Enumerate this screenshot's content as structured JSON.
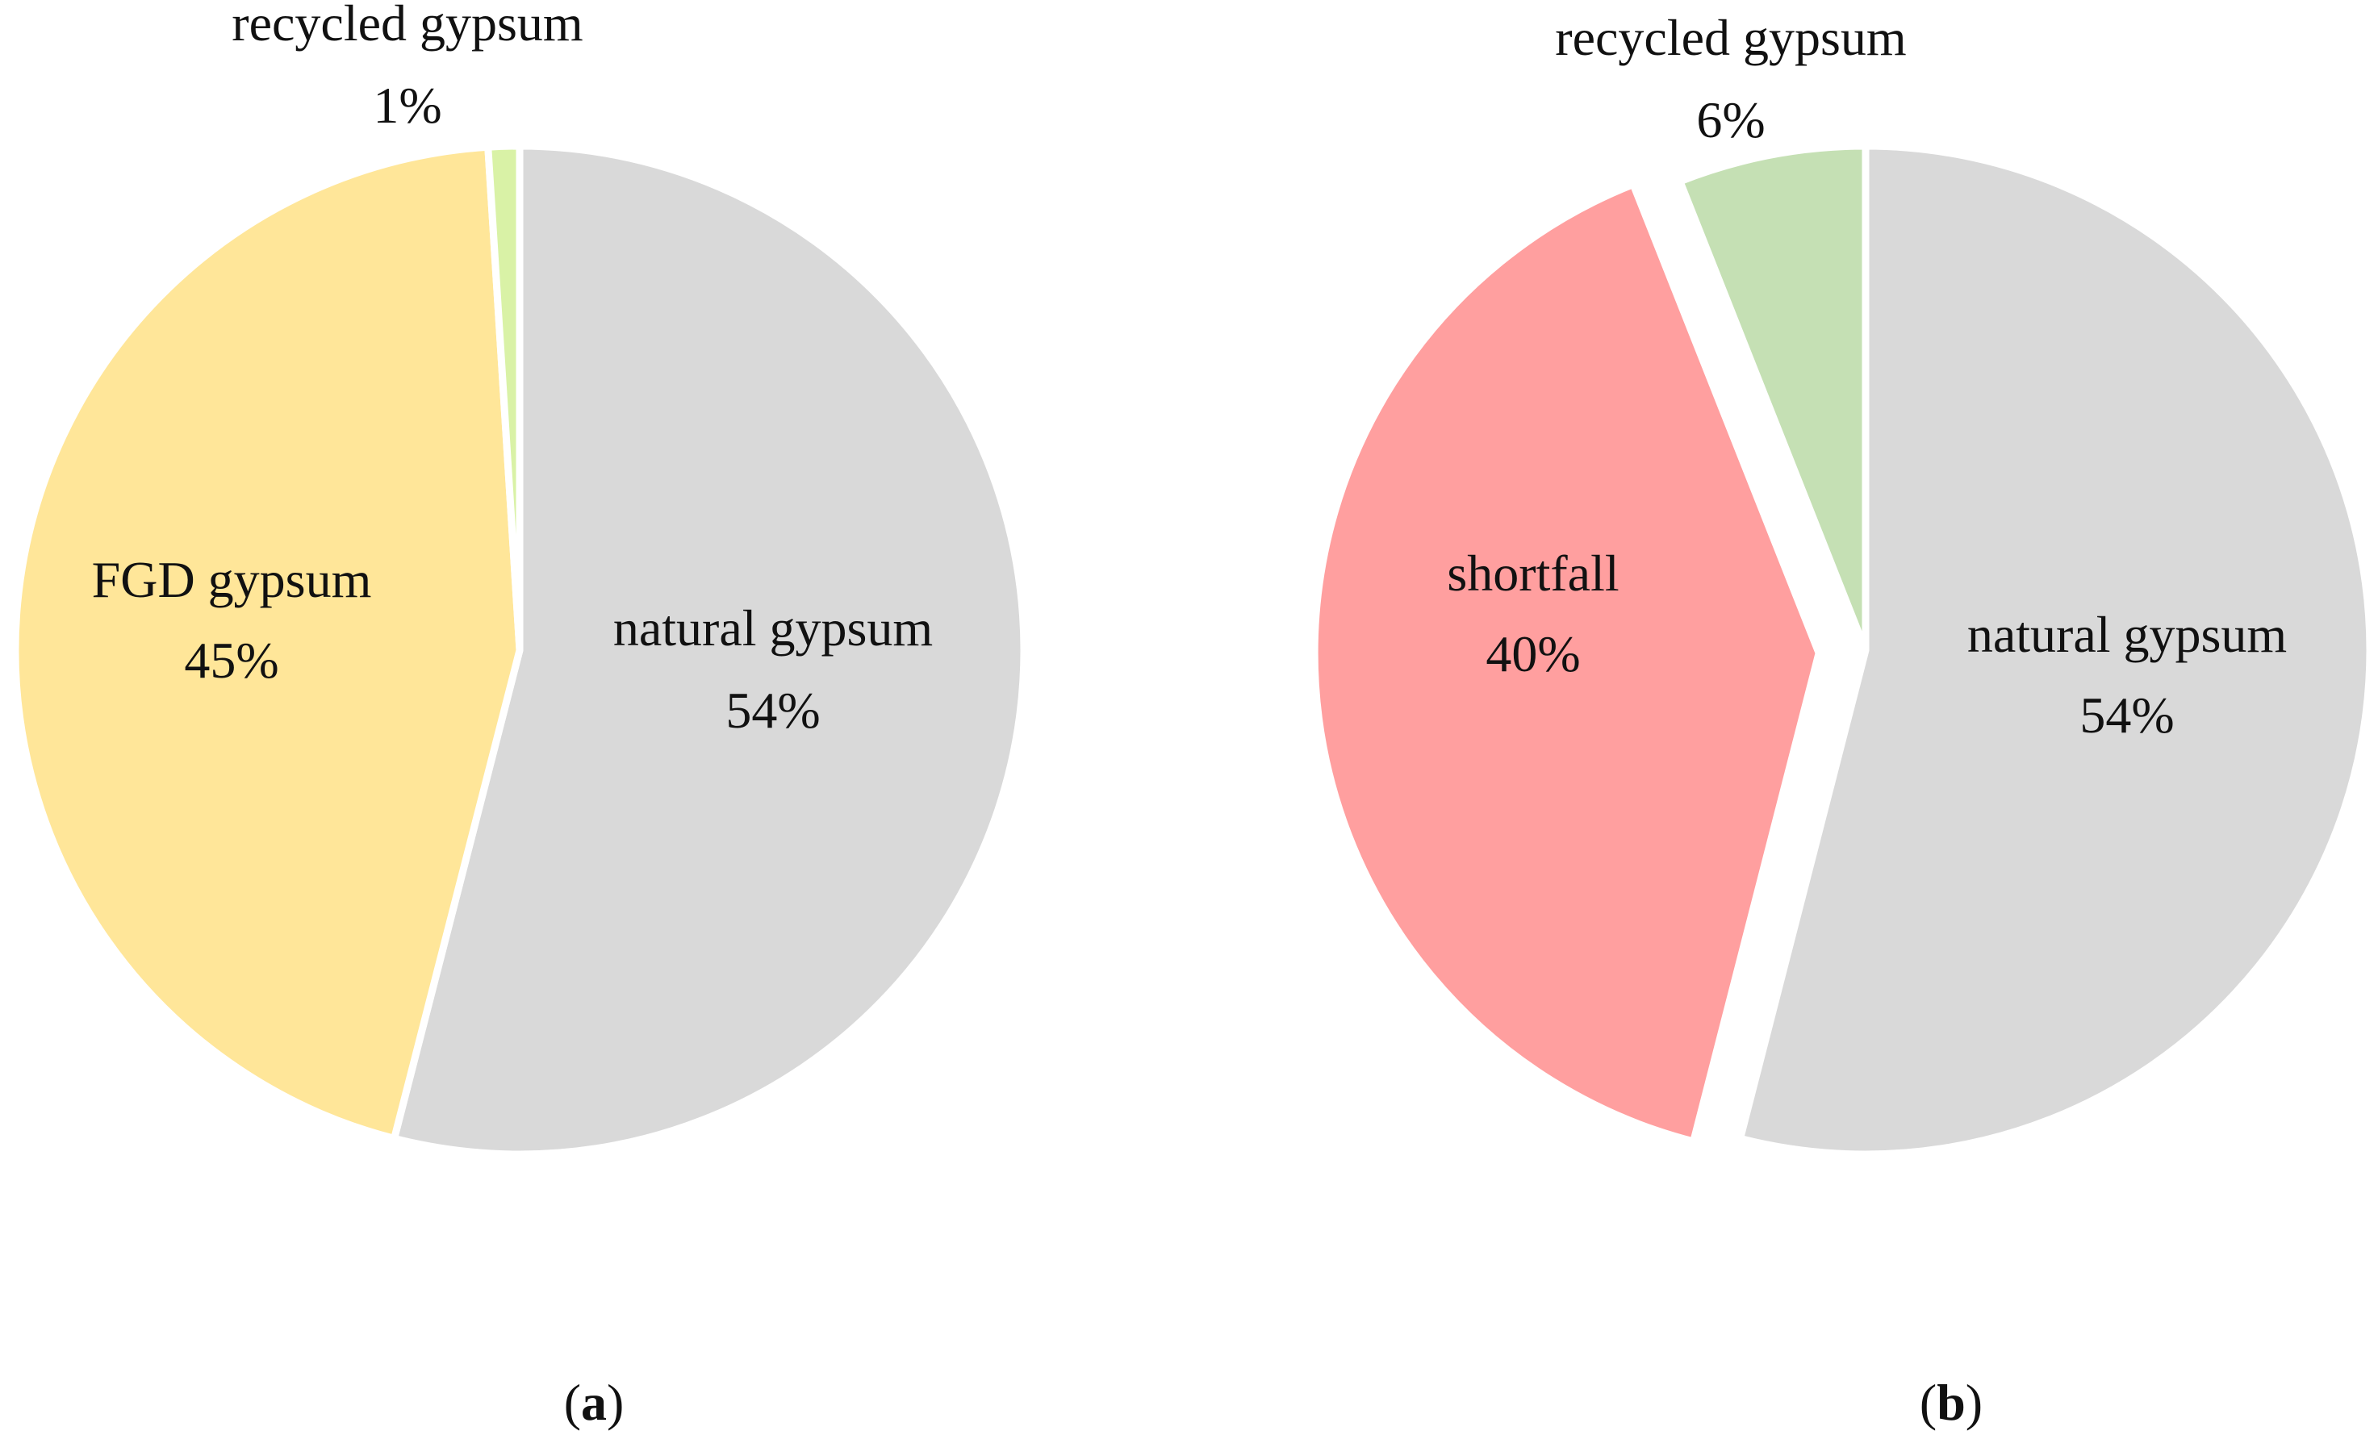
{
  "chart_data": [
    {
      "type": "pie",
      "panel_label": "a",
      "categories": [
        "natural gypsum",
        "FGD gypsum",
        "recycled gypsum"
      ],
      "values": [
        54,
        45,
        1
      ],
      "value_labels": [
        "54%",
        "45%",
        "1%"
      ],
      "colors": [
        "#d9d9d9",
        "#ffe699",
        "#d9f2a6"
      ],
      "exploded": [
        false,
        false,
        false
      ],
      "start_angle_deg": 0,
      "direction": "clockwise"
    },
    {
      "type": "pie",
      "panel_label": "b",
      "categories": [
        "natural gypsum",
        "shortfall",
        "recycled gypsum"
      ],
      "values": [
        54,
        40,
        6
      ],
      "value_labels": [
        "54%",
        "40%",
        "6%"
      ],
      "colors": [
        "#d9d9d9",
        "#ff9f9f",
        "#c5e0b4"
      ],
      "exploded": [
        false,
        true,
        false
      ],
      "start_angle_deg": 0,
      "direction": "clockwise"
    }
  ]
}
